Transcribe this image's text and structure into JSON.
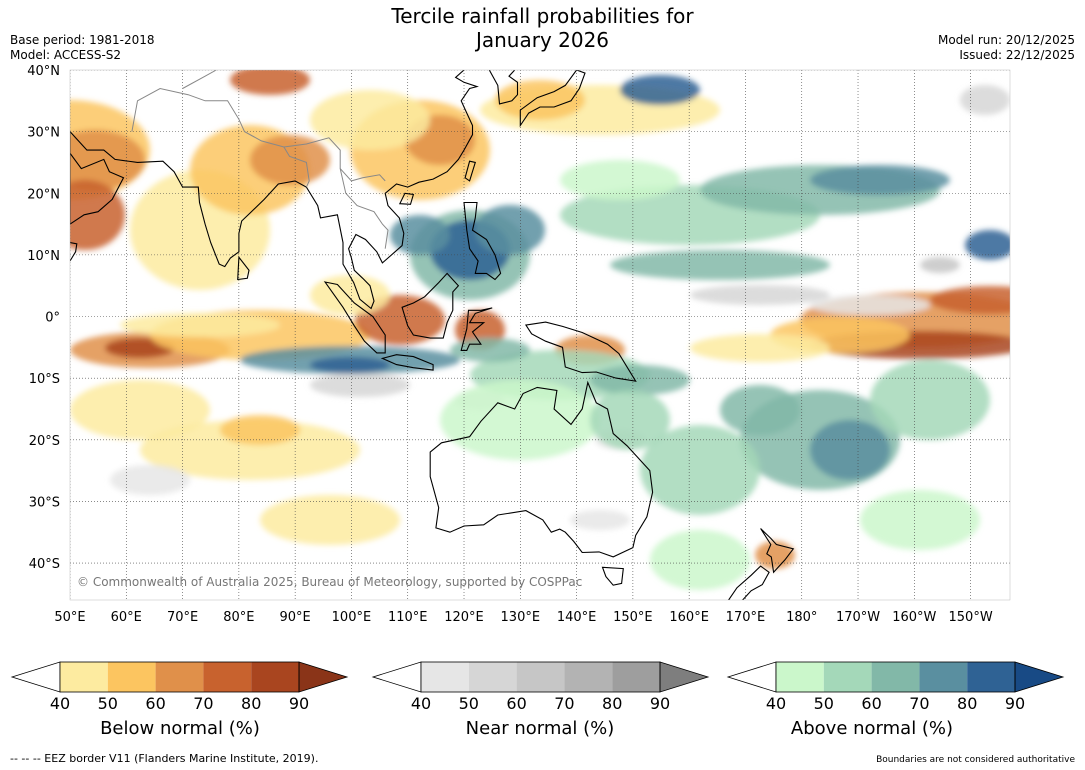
{
  "title": {
    "line1": "Tercile rainfall probabilities for",
    "line2": "January 2026"
  },
  "meta": {
    "base_period": "Base period: 1981-2018",
    "model": "Model: ACCESS-S2",
    "model_run": "Model run: 20/12/2025",
    "issued": "Issued: 22/12/2025"
  },
  "map": {
    "lat_labels": [
      "40°N",
      "30°N",
      "20°N",
      "10°N",
      "0°",
      "10°S",
      "20°S",
      "30°S",
      "40°S"
    ],
    "lat_values": [
      40,
      30,
      20,
      10,
      0,
      -10,
      -20,
      -30,
      -40
    ],
    "lon_labels": [
      "50°E",
      "60°E",
      "70°E",
      "80°E",
      "90°E",
      "100°E",
      "110°E",
      "120°E",
      "130°E",
      "140°E",
      "150°E",
      "160°E",
      "170°E",
      "180°",
      "170°W",
      "160°W",
      "150°W"
    ],
    "lon_values": [
      50,
      60,
      70,
      80,
      90,
      100,
      110,
      120,
      130,
      140,
      150,
      160,
      170,
      180,
      190,
      200,
      210
    ],
    "lat_range": [
      -46,
      40
    ],
    "lon_range": [
      50,
      217
    ],
    "copyright": "© Commonwealth of Australia 2025, Bureau of Meteorology, supported by COSPPac"
  },
  "legends": [
    {
      "name": "Below normal (%)",
      "ticks": [
        "40",
        "50",
        "60",
        "70",
        "80",
        "90"
      ],
      "colors": [
        "#fdeba0",
        "#fcc560",
        "#e0904a",
        "#c8622e",
        "#a9451f"
      ],
      "extend_color": "#8a3418"
    },
    {
      "name": "Near normal (%)",
      "ticks": [
        "40",
        "50",
        "60",
        "70",
        "80",
        "90"
      ],
      "colors": [
        "#e6e6e6",
        "#d6d6d6",
        "#c6c6c6",
        "#b3b3b3",
        "#9e9e9e"
      ],
      "extend_color": "#7e7e7e"
    },
    {
      "name": "Above normal (%)",
      "ticks": [
        "40",
        "50",
        "60",
        "70",
        "80",
        "90"
      ],
      "colors": [
        "#cbf7cb",
        "#a4d8b9",
        "#82b8a8",
        "#5a8fa0",
        "#2f6294"
      ],
      "extend_color": "#184a85"
    }
  ],
  "footer": {
    "eez": "--  --  -- EEZ border V11 (Flanders Marine Institute, 2019).",
    "boundaries": "Boundaries are not considered authoritative"
  },
  "colors": {
    "below": "#e0904a",
    "near": "#c6c6c6",
    "above": "#82b8a8",
    "coast": "#000000",
    "border": "#888888"
  }
}
